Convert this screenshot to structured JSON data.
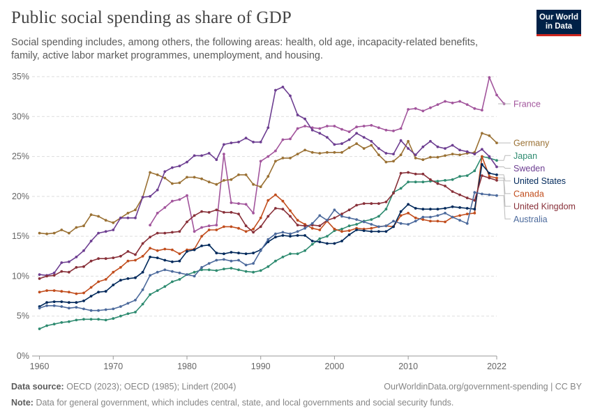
{
  "header": {
    "title": "Public social spending as share of GDP",
    "subtitle": "Social spending includes, among others, the following areas: health, old age, incapacity-related benefits, family, active labor market programmes, unemployment, and housing.",
    "logo_line1": "Our World",
    "logo_line2": "in Data"
  },
  "footer": {
    "source_label": "Data source:",
    "source_text": "OECD (2023); OECD (1985); Lindert (2004)",
    "url_text": "OurWorldinData.org/government-spending | CC BY",
    "note_label": "Note:",
    "note_text": "Data for general government, which includes central, state, and local governments and social security funds."
  },
  "chart_data": {
    "type": "line",
    "title": "Public social spending as share of GDP",
    "xlabel": "",
    "ylabel": "",
    "xlim": [
      1959,
      2022
    ],
    "ylim": [
      0,
      35
    ],
    "x_ticks": [
      "1960",
      "1970",
      "1980",
      "1990",
      "2000",
      "2010",
      "2022"
    ],
    "y_ticks": [
      "0%",
      "5%",
      "10%",
      "15%",
      "20%",
      "25%",
      "30%",
      "35%"
    ],
    "grid": "horizontal dashed",
    "legend": "right, labels at line ends",
    "series": [
      {
        "name": "France",
        "color": "#a2559c",
        "start": 1975,
        "values": [
          16.4,
          17.9,
          18.6,
          19.4,
          19.6,
          20.1,
          15.6,
          16.1,
          16.3,
          16.4,
          25.3,
          19.2,
          19.1,
          19.0,
          17.9,
          24.4,
          25.0,
          25.7,
          27.1,
          27.2,
          28.5,
          28.8,
          28.6,
          28.5,
          28.8,
          28.8,
          28.4,
          28.1,
          28.7,
          28.8,
          28.9,
          28.6,
          28.3,
          28.2,
          28.5,
          30.9,
          31.0,
          30.7,
          31.1,
          31.5,
          31.9,
          31.7,
          31.9,
          31.5,
          31.0,
          30.8,
          34.9,
          32.7,
          31.6
        ]
      },
      {
        "name": "Germany",
        "color": "#9a7134",
        "start": 1960,
        "values": [
          15.4,
          15.3,
          15.4,
          15.8,
          15.4,
          16.1,
          16.3,
          17.7,
          17.5,
          17.0,
          16.7,
          17.3,
          17.9,
          18.3,
          19.9,
          23.0,
          22.7,
          22.3,
          21.6,
          21.7,
          22.4,
          22.4,
          22.2,
          21.8,
          21.5,
          22.0,
          22.1,
          22.7,
          22.7,
          21.5,
          21.2,
          22.5,
          24.4,
          24.8,
          24.8,
          25.3,
          25.8,
          25.5,
          25.4,
          25.5,
          25.5,
          25.5,
          26.1,
          26.6,
          26.0,
          26.4,
          25.2,
          24.3,
          24.4,
          25.2,
          26.9,
          24.8,
          24.6,
          24.9,
          24.9,
          25.1,
          25.3,
          25.2,
          25.4,
          25.5,
          27.9,
          27.6,
          26.7
        ]
      },
      {
        "name": "Japan",
        "color": "#2e8b70",
        "start": 1960,
        "values": [
          3.4,
          3.8,
          4.0,
          4.2,
          4.3,
          4.5,
          4.6,
          4.6,
          4.6,
          4.5,
          4.7,
          5.0,
          5.3,
          5.5,
          6.5,
          7.7,
          8.2,
          8.7,
          9.3,
          9.6,
          10.2,
          10.5,
          10.8,
          10.8,
          10.7,
          10.9,
          11.0,
          10.8,
          10.6,
          10.5,
          10.7,
          11.2,
          11.9,
          12.4,
          12.8,
          12.8,
          13.2,
          14.0,
          14.7,
          15.0,
          15.7,
          15.9,
          16.3,
          16.5,
          16.9,
          17.1,
          17.5,
          18.4,
          20.5,
          21.0,
          21.8,
          21.8,
          21.8,
          21.9,
          21.9,
          22.0,
          22.1,
          22.5,
          22.6,
          23.2,
          25.0,
          24.8,
          24.5
        ]
      },
      {
        "name": "Canada",
        "color": "#c14d1d",
        "start": 1960,
        "values": [
          8.0,
          8.2,
          8.2,
          8.1,
          8.0,
          7.8,
          7.9,
          8.6,
          9.3,
          9.6,
          10.5,
          11.1,
          11.9,
          12.0,
          12.5,
          13.5,
          13.2,
          13.4,
          13.3,
          12.8,
          13.3,
          13.4,
          15.0,
          15.8,
          15.8,
          16.2,
          16.2,
          16.0,
          15.6,
          15.9,
          17.3,
          19.5,
          20.2,
          19.4,
          18.2,
          17.0,
          16.5,
          16.0,
          15.8,
          16.9,
          15.9,
          15.6,
          15.7,
          16.0,
          15.9,
          16.0,
          16.2,
          16.3,
          16.2,
          17.6,
          17.9,
          17.3,
          17.1,
          16.9,
          16.9,
          16.8,
          17.4,
          17.6,
          17.8,
          17.9,
          25.0,
          22.5,
          22.3
        ]
      },
      {
        "name": "Sweden",
        "color": "#6d3e91",
        "start": 1960,
        "values": [
          10.2,
          10.1,
          10.4,
          11.7,
          11.8,
          12.4,
          13.2,
          14.4,
          15.4,
          15.6,
          15.8,
          17.3,
          17.3,
          17.3,
          19.9,
          20.0,
          20.8,
          23.1,
          23.6,
          23.8,
          24.3,
          25.1,
          25.1,
          25.4,
          24.6,
          26.5,
          26.7,
          26.8,
          27.3,
          26.8,
          26.8,
          28.6,
          33.3,
          33.7,
          32.6,
          30.2,
          29.7,
          28.3,
          27.9,
          27.4,
          26.5,
          26.6,
          27.1,
          27.9,
          27.4,
          26.9,
          26.0,
          25.4,
          25.3,
          27.0,
          26.0,
          25.2,
          26.2,
          26.9,
          26.2,
          26.0,
          26.4,
          25.8,
          25.6,
          25.3,
          25.9,
          25.0,
          23.7
        ]
      },
      {
        "name": "United States",
        "color": "#00295b",
        "start": 1960,
        "values": [
          6.2,
          6.7,
          6.8,
          6.8,
          6.7,
          6.7,
          6.9,
          7.5,
          8.0,
          8.1,
          8.9,
          9.5,
          9.7,
          9.8,
          10.5,
          12.4,
          12.3,
          12.0,
          11.8,
          11.9,
          13.1,
          13.3,
          13.8,
          13.9,
          12.9,
          12.8,
          13.0,
          12.9,
          12.8,
          12.9,
          13.3,
          14.3,
          14.9,
          15.1,
          15.0,
          15.1,
          15.1,
          14.4,
          14.3,
          14.1,
          14.1,
          14.4,
          15.2,
          15.8,
          15.7,
          15.6,
          15.6,
          15.6,
          16.2,
          18.1,
          19.0,
          18.5,
          18.4,
          18.4,
          18.4,
          18.5,
          18.7,
          18.6,
          18.5,
          18.4,
          24.0,
          22.9,
          22.7
        ]
      },
      {
        "name": "United Kingdom",
        "color": "#883039",
        "start": 1960,
        "values": [
          9.7,
          10.0,
          10.1,
          10.6,
          10.5,
          11.1,
          11.2,
          11.9,
          12.2,
          12.2,
          12.3,
          12.5,
          13.1,
          12.7,
          14.1,
          14.9,
          15.4,
          15.4,
          15.5,
          15.6,
          16.8,
          17.6,
          18.1,
          18.0,
          18.3,
          18.0,
          18.0,
          17.8,
          16.3,
          15.5,
          16.2,
          17.5,
          18.5,
          18.4,
          17.5,
          16.4,
          16.3,
          16.4,
          16.3,
          17.0,
          17.3,
          17.8,
          18.3,
          18.9,
          19.1,
          19.1,
          19.1,
          19.3,
          20.4,
          22.9,
          23.0,
          22.8,
          22.8,
          22.1,
          21.6,
          21.3,
          20.6,
          20.2,
          19.8,
          19.5,
          22.6,
          22.3,
          22.0
        ]
      },
      {
        "name": "Australia",
        "color": "#4c6a9c",
        "start": 1960,
        "values": [
          6.0,
          6.3,
          6.3,
          6.2,
          6.0,
          6.1,
          5.9,
          5.7,
          5.7,
          5.8,
          5.9,
          6.2,
          6.6,
          7.0,
          8.3,
          10.1,
          10.5,
          10.8,
          10.6,
          10.4,
          10.2,
          10.0,
          11.1,
          11.6,
          12.0,
          12.1,
          11.9,
          12.0,
          11.4,
          11.6,
          13.2,
          14.6,
          15.3,
          15.5,
          15.3,
          15.6,
          16.0,
          16.6,
          17.6,
          17.0,
          18.3,
          17.5,
          17.3,
          17.1,
          16.8,
          16.5,
          16.2,
          16.3,
          16.9,
          16.6,
          16.5,
          16.9,
          17.4,
          17.4,
          17.6,
          17.9,
          17.4,
          17.0,
          16.6,
          20.5,
          20.3,
          20.2,
          20.1
        ]
      }
    ]
  }
}
